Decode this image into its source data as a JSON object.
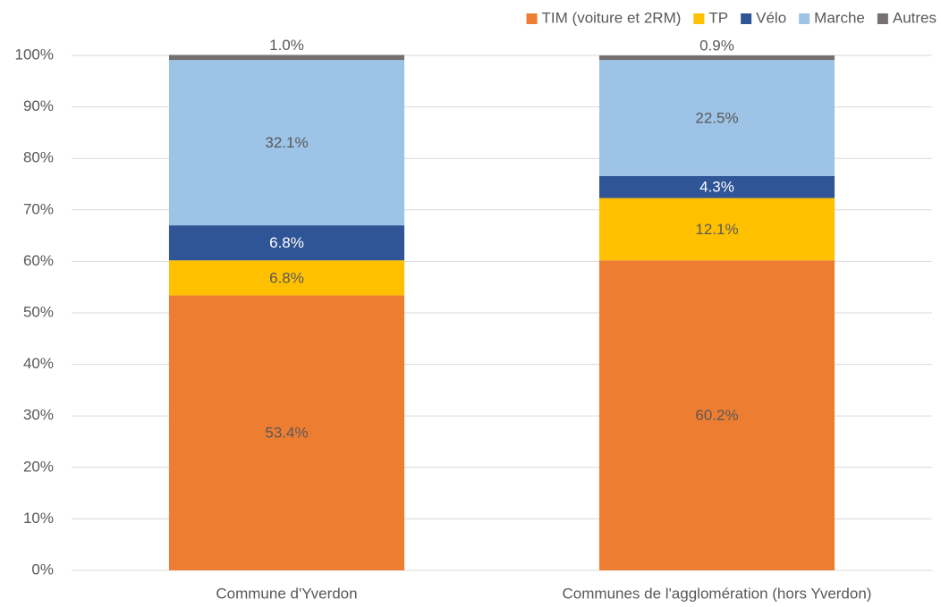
{
  "chart_data": {
    "type": "stacked_bar",
    "categories": [
      "Commune d'Yverdon",
      "Communes de l'agglomération (hors Yverdon)"
    ],
    "series": [
      {
        "name": "TIM (voiture et 2RM)",
        "color": "#ed7d31",
        "values": [
          53.4,
          60.2
        ],
        "value_labels": [
          "53.4%",
          "60.2%"
        ]
      },
      {
        "name": "TP",
        "color": "#ffc000",
        "values": [
          6.8,
          12.1
        ],
        "value_labels": [
          "6.8%",
          "12.1%"
        ]
      },
      {
        "name": "Vélo",
        "color": "#2f5597",
        "values": [
          6.8,
          4.3
        ],
        "value_labels": [
          "6.8%",
          "4.3%"
        ]
      },
      {
        "name": "Marche",
        "color": "#9dc3e6",
        "values": [
          32.1,
          22.5
        ],
        "value_labels": [
          "32.1%",
          "22.5%"
        ]
      },
      {
        "name": "Autres",
        "color": "#767171",
        "values": [
          1.0,
          0.9
        ],
        "value_labels": [
          "1.0%",
          "0.9%"
        ]
      }
    ],
    "ylim": [
      0,
      100
    ],
    "yticks": [
      {
        "value": 0,
        "label": "0%"
      },
      {
        "value": 10,
        "label": "10%"
      },
      {
        "value": 20,
        "label": "20%"
      },
      {
        "value": 30,
        "label": "30%"
      },
      {
        "value": 40,
        "label": "40%"
      },
      {
        "value": 50,
        "label": "50%"
      },
      {
        "value": 60,
        "label": "60%"
      },
      {
        "value": 70,
        "label": "70%"
      },
      {
        "value": 80,
        "label": "80%"
      },
      {
        "value": 90,
        "label": "90%"
      },
      {
        "value": 100,
        "label": "100%"
      }
    ],
    "grid": true,
    "legend": "top-right"
  }
}
